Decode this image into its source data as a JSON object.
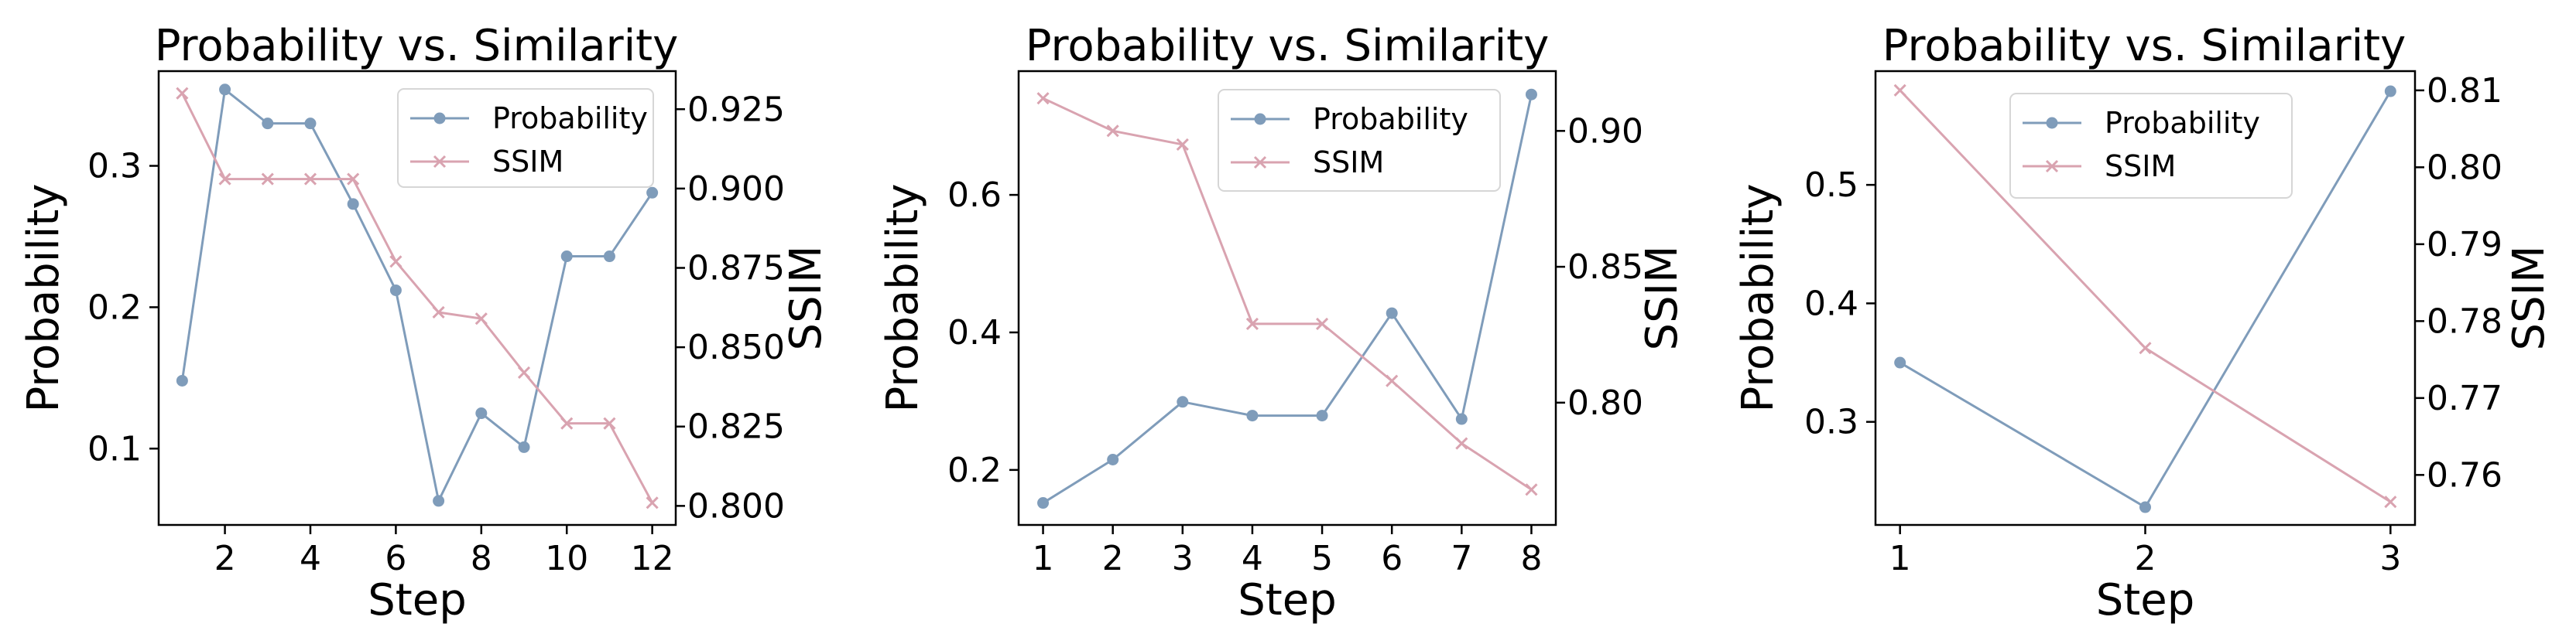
{
  "colors": {
    "probability": "#7f9cba",
    "ssim": "#d9a3b0",
    "axis": "#000000"
  },
  "chart_data": [
    {
      "type": "line",
      "title": "Probability vs. Similarity",
      "xlabel": "Step",
      "ylabel_left": "Probability",
      "ylabel_right": "SSIM",
      "xlim": [
        0.45,
        12.55
      ],
      "xticks": [
        2,
        4,
        6,
        8,
        10,
        12
      ],
      "ylim_left": [
        0.046,
        0.367
      ],
      "yticks_left": [
        0.1,
        0.2,
        0.3
      ],
      "ylim_right": [
        0.794,
        0.937
      ],
      "yticks_right": [
        0.8,
        0.825,
        0.85,
        0.875,
        0.9,
        0.925
      ],
      "legend_position": "top-right",
      "x": [
        1,
        2,
        3,
        4,
        5,
        6,
        7,
        8,
        9,
        10,
        11,
        12
      ],
      "series": [
        {
          "name": "Probability",
          "axis": "left",
          "marker": "circle",
          "values": [
            0.148,
            0.354,
            0.33,
            0.33,
            0.273,
            0.212,
            0.063,
            0.125,
            0.101,
            0.236,
            0.236,
            0.281
          ]
        },
        {
          "name": "SSIM",
          "axis": "right",
          "marker": "x",
          "values": [
            0.93,
            0.903,
            0.903,
            0.903,
            0.903,
            0.877,
            0.861,
            0.859,
            0.842,
            0.826,
            0.826,
            0.801
          ]
        }
      ]
    },
    {
      "type": "line",
      "title": "Probability vs. Similarity",
      "xlabel": "Step",
      "ylabel_left": "Probability",
      "ylabel_right": "SSIM",
      "xlim": [
        0.65,
        8.35
      ],
      "xticks": [
        1,
        2,
        3,
        4,
        5,
        6,
        7,
        8
      ],
      "ylim_left": [
        0.12,
        0.78
      ],
      "yticks_left": [
        0.2,
        0.4,
        0.6
      ],
      "ylim_right": [
        0.755,
        0.922
      ],
      "yticks_right": [
        0.8,
        0.85,
        0.9
      ],
      "legend_position": "top-right",
      "x": [
        1,
        2,
        3,
        4,
        5,
        6,
        7,
        8
      ],
      "series": [
        {
          "name": "Probability",
          "axis": "left",
          "marker": "circle",
          "values": [
            0.152,
            0.215,
            0.299,
            0.279,
            0.279,
            0.428,
            0.274,
            0.746
          ]
        },
        {
          "name": "SSIM",
          "axis": "right",
          "marker": "x",
          "values": [
            0.912,
            0.9,
            0.895,
            0.829,
            0.829,
            0.808,
            0.785,
            0.768
          ]
        }
      ]
    },
    {
      "type": "line",
      "title": "Probability vs. Similarity",
      "xlabel": "Step",
      "ylabel_left": "Probability",
      "ylabel_right": "SSIM",
      "xlim": [
        0.9,
        3.1
      ],
      "xticks": [
        1,
        2,
        3
      ],
      "ylim_left": [
        0.213,
        0.596
      ],
      "yticks_left": [
        0.3,
        0.4,
        0.5
      ],
      "ylim_right": [
        0.7535,
        0.8125
      ],
      "yticks_right": [
        0.76,
        0.77,
        0.78,
        0.79,
        0.8,
        0.81
      ],
      "legend_position": "top-right",
      "x": [
        1,
        2,
        3
      ],
      "series": [
        {
          "name": "Probability",
          "axis": "left",
          "marker": "circle",
          "values": [
            0.35,
            0.228,
            0.579
          ]
        },
        {
          "name": "SSIM",
          "axis": "right",
          "marker": "x",
          "values": [
            0.81,
            0.7765,
            0.7565
          ]
        }
      ]
    }
  ]
}
